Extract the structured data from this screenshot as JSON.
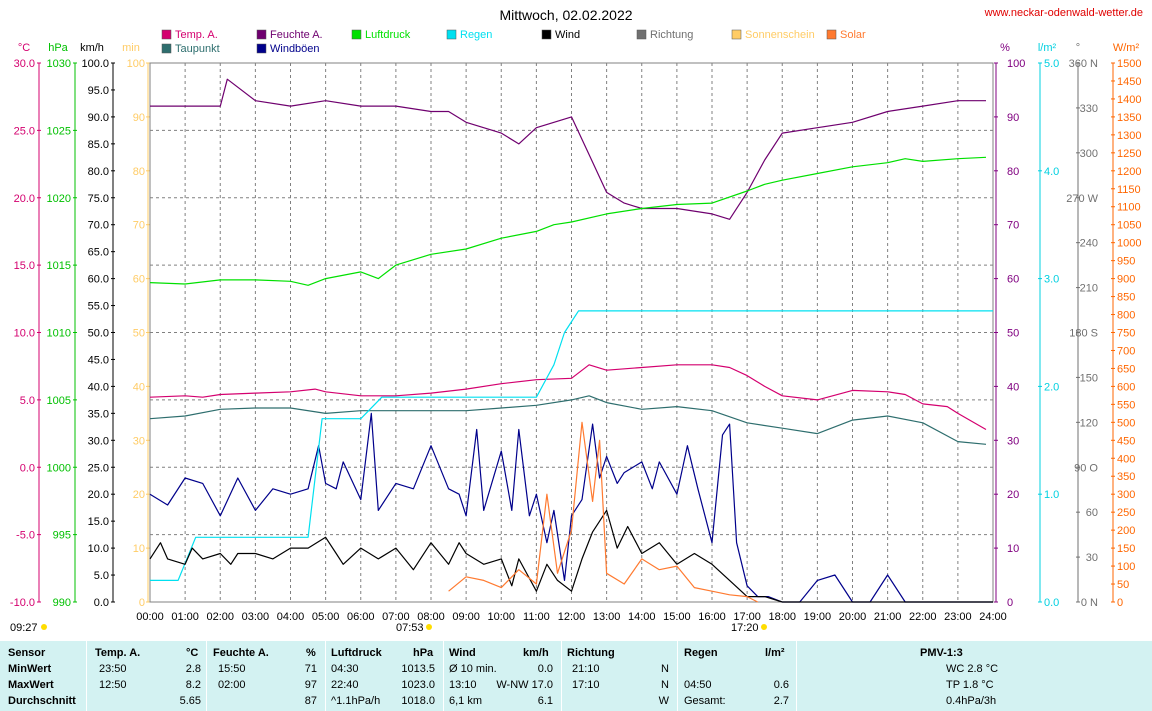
{
  "header": {
    "title": "Mittwoch, 02.02.2022",
    "site": "www.neckar-odenwald-wetter.de"
  },
  "colors": {
    "temp": "#d4006f",
    "dew": "#2e6e6e",
    "humidity": "#6f006f",
    "pressure": "#00e000",
    "rain": "#00e0f0",
    "wind": "#000000",
    "gust": "#00008b",
    "direction": "#707070",
    "sunshine": "#ffbf60",
    "solar": "#ff7a30",
    "hum_axis": "#800080",
    "sun_axis": "#ffcc66",
    "solar_axis": "#ff6600"
  },
  "legend": [
    {
      "label": "Temp. A.",
      "color": "#d4006f"
    },
    {
      "label": "Taupunkt",
      "color": "#2e6e6e"
    },
    {
      "label": "Feuchte A.",
      "color": "#6f006f"
    },
    {
      "label": "Windböen",
      "color": "#00008b"
    },
    {
      "label": "Luftdruck",
      "color": "#00e000"
    },
    {
      "label": "Regen",
      "color": "#00e0f0"
    },
    {
      "label": "Wind",
      "color": "#000000"
    },
    {
      "label": "Richtung",
      "color": "#707070"
    },
    {
      "label": "Sonnenschein",
      "color": "#ffcc66"
    },
    {
      "label": "Solar",
      "color": "#ff7a30"
    }
  ],
  "axes": {
    "units": {
      "temp": "°C",
      "pressure": "hPa",
      "wind": "km/h",
      "sun": "min",
      "hum": "%",
      "rain": "l/m²",
      "dir": "°",
      "solar": "W/m²"
    },
    "temp_ticks": [
      "30.0",
      "25.0",
      "20.0",
      "15.0",
      "10.0",
      "5.0",
      "0.0",
      "-5.0",
      "-10.0"
    ],
    "pressure_ticks": [
      "1030",
      "1025",
      "1020",
      "1015",
      "1010",
      "1005",
      "1000",
      "995",
      "990"
    ],
    "wind_ticks": [
      "100.0",
      "95.0",
      "90.0",
      "85.0",
      "80.0",
      "75.0",
      "70.0",
      "65.0",
      "60.0",
      "55.0",
      "50.0",
      "45.0",
      "40.0",
      "35.0",
      "30.0",
      "25.0",
      "20.0",
      "15.0",
      "10.0",
      "5.0",
      "0.0"
    ],
    "sun_ticks": [
      "100",
      "90",
      "80",
      "70",
      "60",
      "50",
      "40",
      "30",
      "20",
      "10",
      "0"
    ],
    "hum_ticks": [
      "100",
      "90",
      "80",
      "70",
      "60",
      "50",
      "40",
      "30",
      "20",
      "10",
      "0"
    ],
    "rain_ticks": [
      "5.0",
      "4.0",
      "3.0",
      "2.0",
      "1.0",
      "0.0"
    ],
    "dir_ticks": [
      "360 N",
      "330",
      "300",
      "270 W",
      "240",
      "210",
      "180 S",
      "150",
      "120",
      "90 O",
      "60",
      "30",
      "0 N"
    ],
    "solar_ticks": [
      "1500",
      "1450",
      "1400",
      "1350",
      "1300",
      "1250",
      "1200",
      "1150",
      "1100",
      "1050",
      "1000",
      "950",
      "900",
      "850",
      "800",
      "750",
      "700",
      "650",
      "600",
      "550",
      "500",
      "450",
      "400",
      "350",
      "300",
      "250",
      "200",
      "150",
      "100",
      "50",
      "0"
    ],
    "time_ticks": [
      "00:00",
      "01:00",
      "02:00",
      "03:00",
      "04:00",
      "05:00",
      "06:00",
      "07:00",
      "08:00",
      "09:00",
      "10:00",
      "11:00",
      "12:00",
      "13:00",
      "14:00",
      "15:00",
      "16:00",
      "17:00",
      "18:00",
      "19:00",
      "20:00",
      "21:00",
      "22:00",
      "23:00",
      "24:00"
    ],
    "sunrise": "07:53",
    "sunset": "17:20",
    "updated": "09:27"
  },
  "chart_data": {
    "type": "line",
    "title": "Mittwoch, 02.02.2022",
    "x_unit": "hours",
    "xlim": [
      0,
      24
    ],
    "series": [
      {
        "name": "Temp. A.",
        "unit": "°C",
        "ylim": [
          -10,
          30
        ],
        "x": [
          0,
          1,
          1.5,
          2,
          3,
          4,
          4.7,
          5,
          6,
          7,
          8,
          9,
          10,
          11,
          12,
          12.5,
          13,
          14,
          15,
          16,
          16.5,
          17,
          17.5,
          18,
          19,
          20,
          21,
          21.5,
          22,
          22.7,
          23,
          23.8
        ],
        "y": [
          5.2,
          5.3,
          5.2,
          5.4,
          5.5,
          5.6,
          5.8,
          5.6,
          5.3,
          5.3,
          5.5,
          5.8,
          6.2,
          6.5,
          6.6,
          7.6,
          7.2,
          7.4,
          7.6,
          7.6,
          7.4,
          6.8,
          6.0,
          5.3,
          5.0,
          5.7,
          5.6,
          5.4,
          4.7,
          4.5,
          4.0,
          2.8
        ]
      },
      {
        "name": "Taupunkt",
        "unit": "°C",
        "ylim": [
          -10,
          30
        ],
        "x": [
          0,
          1,
          2,
          3,
          4,
          5,
          6,
          7,
          8,
          9,
          10,
          11,
          12,
          12.5,
          13,
          14,
          15,
          16,
          17,
          18,
          19,
          20,
          21,
          22,
          23,
          23.8
        ],
        "y": [
          3.6,
          3.8,
          4.3,
          4.4,
          4.4,
          4.0,
          4.2,
          4.2,
          4.2,
          4.2,
          4.4,
          4.6,
          5.0,
          5.3,
          4.8,
          4.3,
          4.5,
          4.2,
          3.3,
          2.9,
          2.5,
          3.5,
          3.8,
          3.3,
          1.9,
          1.7
        ]
      },
      {
        "name": "Feuchte A.",
        "unit": "%",
        "ylim": [
          0,
          100
        ],
        "x": [
          0,
          1,
          2,
          2.2,
          3,
          4,
          5,
          6,
          7,
          8,
          8.5,
          9,
          10,
          10.5,
          11,
          12,
          12.5,
          13,
          13.5,
          14,
          15,
          16,
          16.5,
          17,
          17.5,
          18,
          19,
          20,
          21,
          22,
          23,
          23.8
        ],
        "y": [
          92,
          92,
          92,
          97,
          93,
          92,
          93,
          92,
          92,
          91,
          91,
          89,
          87,
          85,
          88,
          90,
          83,
          76,
          74,
          73,
          73,
          72,
          71,
          76,
          82,
          87,
          88,
          89,
          91,
          92,
          93,
          93
        ]
      },
      {
        "name": "Windböen",
        "unit": "km/h",
        "ylim": [
          0,
          100
        ],
        "x": [
          0,
          0.5,
          1,
          1.5,
          2,
          2.5,
          3,
          3.5,
          4,
          4.5,
          4.8,
          5,
          5.3,
          5.5,
          6,
          6.3,
          6.5,
          7,
          7.5,
          8,
          8.5,
          8.8,
          9,
          9.3,
          9.5,
          10,
          10.3,
          10.5,
          10.8,
          11,
          11.3,
          11.5,
          11.8,
          12,
          12.3,
          12.6,
          12.8,
          13,
          13.3,
          13.5,
          14,
          14.3,
          14.5,
          15,
          15.3,
          15.6,
          16,
          16.3,
          16.5,
          16.7,
          17,
          17.3,
          17.6,
          18,
          18.5,
          19,
          19.5,
          20,
          20.5,
          21,
          21.5,
          22,
          23,
          24
        ],
        "y": [
          20,
          18,
          23,
          22,
          16,
          23,
          17,
          21,
          20,
          21,
          29,
          22,
          21,
          26,
          19,
          35,
          17,
          22,
          21,
          29,
          21,
          20,
          16,
          32,
          17,
          28,
          17,
          32,
          16,
          20,
          11,
          17,
          4,
          16,
          19,
          33,
          23,
          27,
          22,
          24,
          26,
          21,
          26,
          20,
          29,
          21,
          11,
          31,
          33,
          11,
          3,
          1,
          1,
          0,
          0,
          4,
          5,
          0,
          0,
          5,
          0,
          0,
          0,
          0
        ]
      },
      {
        "name": "Luftdruck",
        "unit": "hPa",
        "ylim": [
          990,
          1030
        ],
        "x": [
          0,
          1,
          2,
          3,
          4,
          4.5,
          5,
          6,
          6.5,
          7,
          8,
          9,
          10,
          11,
          11.5,
          12,
          13,
          14,
          15,
          16,
          17,
          17.5,
          18,
          19,
          20,
          21,
          21.5,
          22,
          23,
          23.8
        ],
        "y": [
          1013.7,
          1013.6,
          1013.9,
          1013.9,
          1013.8,
          1013.5,
          1014.0,
          1014.5,
          1014.0,
          1015.0,
          1015.8,
          1016.2,
          1017.0,
          1017.5,
          1018.0,
          1018.2,
          1018.8,
          1019.2,
          1019.5,
          1019.6,
          1020.5,
          1021.0,
          1021.3,
          1021.8,
          1022.3,
          1022.6,
          1022.9,
          1022.7,
          1022.9,
          1023.0
        ]
      },
      {
        "name": "Regen",
        "unit": "l/m²",
        "ylim": [
          0,
          5
        ],
        "x": [
          0,
          0.8,
          1.3,
          2,
          3,
          4,
          4.5,
          4.9,
          5,
          6,
          6.6,
          7,
          8,
          9,
          10,
          11,
          11.5,
          11.8,
          12.2,
          13,
          14,
          15,
          16,
          17,
          18,
          19,
          20,
          21,
          22,
          23,
          24
        ],
        "y": [
          0.2,
          0.2,
          0.6,
          0.6,
          0.6,
          0.6,
          0.6,
          1.7,
          1.7,
          1.7,
          1.9,
          1.9,
          1.9,
          1.9,
          1.9,
          1.9,
          2.2,
          2.5,
          2.7,
          2.7,
          2.7,
          2.7,
          2.7,
          2.7,
          2.7,
          2.7,
          2.7,
          2.7,
          2.7,
          2.7,
          2.7
        ]
      },
      {
        "name": "Wind",
        "unit": "km/h",
        "ylim": [
          0,
          100
        ],
        "x": [
          0,
          0.3,
          0.5,
          1,
          1.2,
          1.5,
          2,
          2.3,
          2.5,
          3,
          3.5,
          4,
          4.5,
          5,
          5.3,
          5.5,
          6,
          6.5,
          7,
          7.5,
          8,
          8.5,
          8.8,
          9,
          9.5,
          10,
          10.3,
          10.5,
          11,
          11.3,
          11.6,
          12,
          12.3,
          12.6,
          13,
          13.3,
          13.6,
          14,
          14.5,
          15,
          15.5,
          16,
          16.5,
          17,
          17.5,
          18,
          24
        ],
        "y": [
          8,
          11,
          8,
          7,
          10,
          8,
          9,
          7,
          9,
          9,
          8,
          10,
          10,
          12,
          9,
          7,
          10,
          8,
          10,
          6,
          11,
          7,
          11,
          9,
          7,
          8,
          3,
          8,
          2,
          7,
          4,
          2,
          8,
          13,
          17,
          10,
          14,
          9,
          11,
          7,
          9,
          7,
          4,
          1,
          1,
          0,
          0
        ]
      },
      {
        "name": "Solar",
        "unit": "W/m²",
        "ylim": [
          0,
          1500
        ],
        "x": [
          8.5,
          9,
          9.5,
          10,
          10.5,
          11,
          11.3,
          11.6,
          12,
          12.3,
          12.6,
          12.8,
          13,
          13.5,
          14,
          14.5,
          15,
          15.5,
          16,
          16.5,
          17,
          17.3
        ],
        "y": [
          30,
          70,
          60,
          40,
          90,
          50,
          300,
          80,
          200,
          500,
          280,
          450,
          80,
          50,
          120,
          90,
          100,
          40,
          30,
          20,
          15,
          0
        ]
      }
    ]
  },
  "stats": {
    "headers": {
      "sensor": "Sensor",
      "temp": "Temp. A.",
      "temp_unit": "°C",
      "hum": "Feuchte A.",
      "hum_unit": "%",
      "press": "Luftdruck",
      "press_unit": "hPa",
      "wind": "Wind",
      "wind_unit": "km/h",
      "dir": "Richtung",
      "rain": "Regen",
      "rain_unit": "l/m²",
      "pmv": "PMV-1:3"
    },
    "rows": [
      {
        "label": "MinWert",
        "t_time": "23:50",
        "t_val": "2.8",
        "h_time": "15:50",
        "h_val": "71",
        "p_time": "04:30",
        "p_val": "1013.5",
        "w_time": "Ø 10 min.",
        "w_val": "0.0",
        "d_time": "21:10",
        "d_val": "N",
        "r_time": "",
        "r_val": "",
        "pmv": "WC 2.8 °C"
      },
      {
        "label": "MaxWert",
        "t_time": "12:50",
        "t_val": "8.2",
        "h_time": "02:00",
        "h_val": "97",
        "p_time": "22:40",
        "p_val": "1023.0",
        "w_time": "13:10",
        "w_val": "W-NW 17.0",
        "d_time": "17:10",
        "d_val": "N",
        "r_time": "04:50",
        "r_val": "0.6",
        "pmv": "TP 1.8 °C"
      },
      {
        "label": "Durchschnitt",
        "t_time": "",
        "t_val": "5.65",
        "h_time": "",
        "h_val": "87",
        "p_time": "^1.1hPa/h",
        "p_val": "1018.0",
        "w_time": "6,1 km",
        "w_val": "6.1",
        "d_time": "",
        "d_val": "W",
        "r_time": "Gesamt:",
        "r_val": "2.7",
        "pmv": "0.4hPa/3h"
      }
    ]
  }
}
